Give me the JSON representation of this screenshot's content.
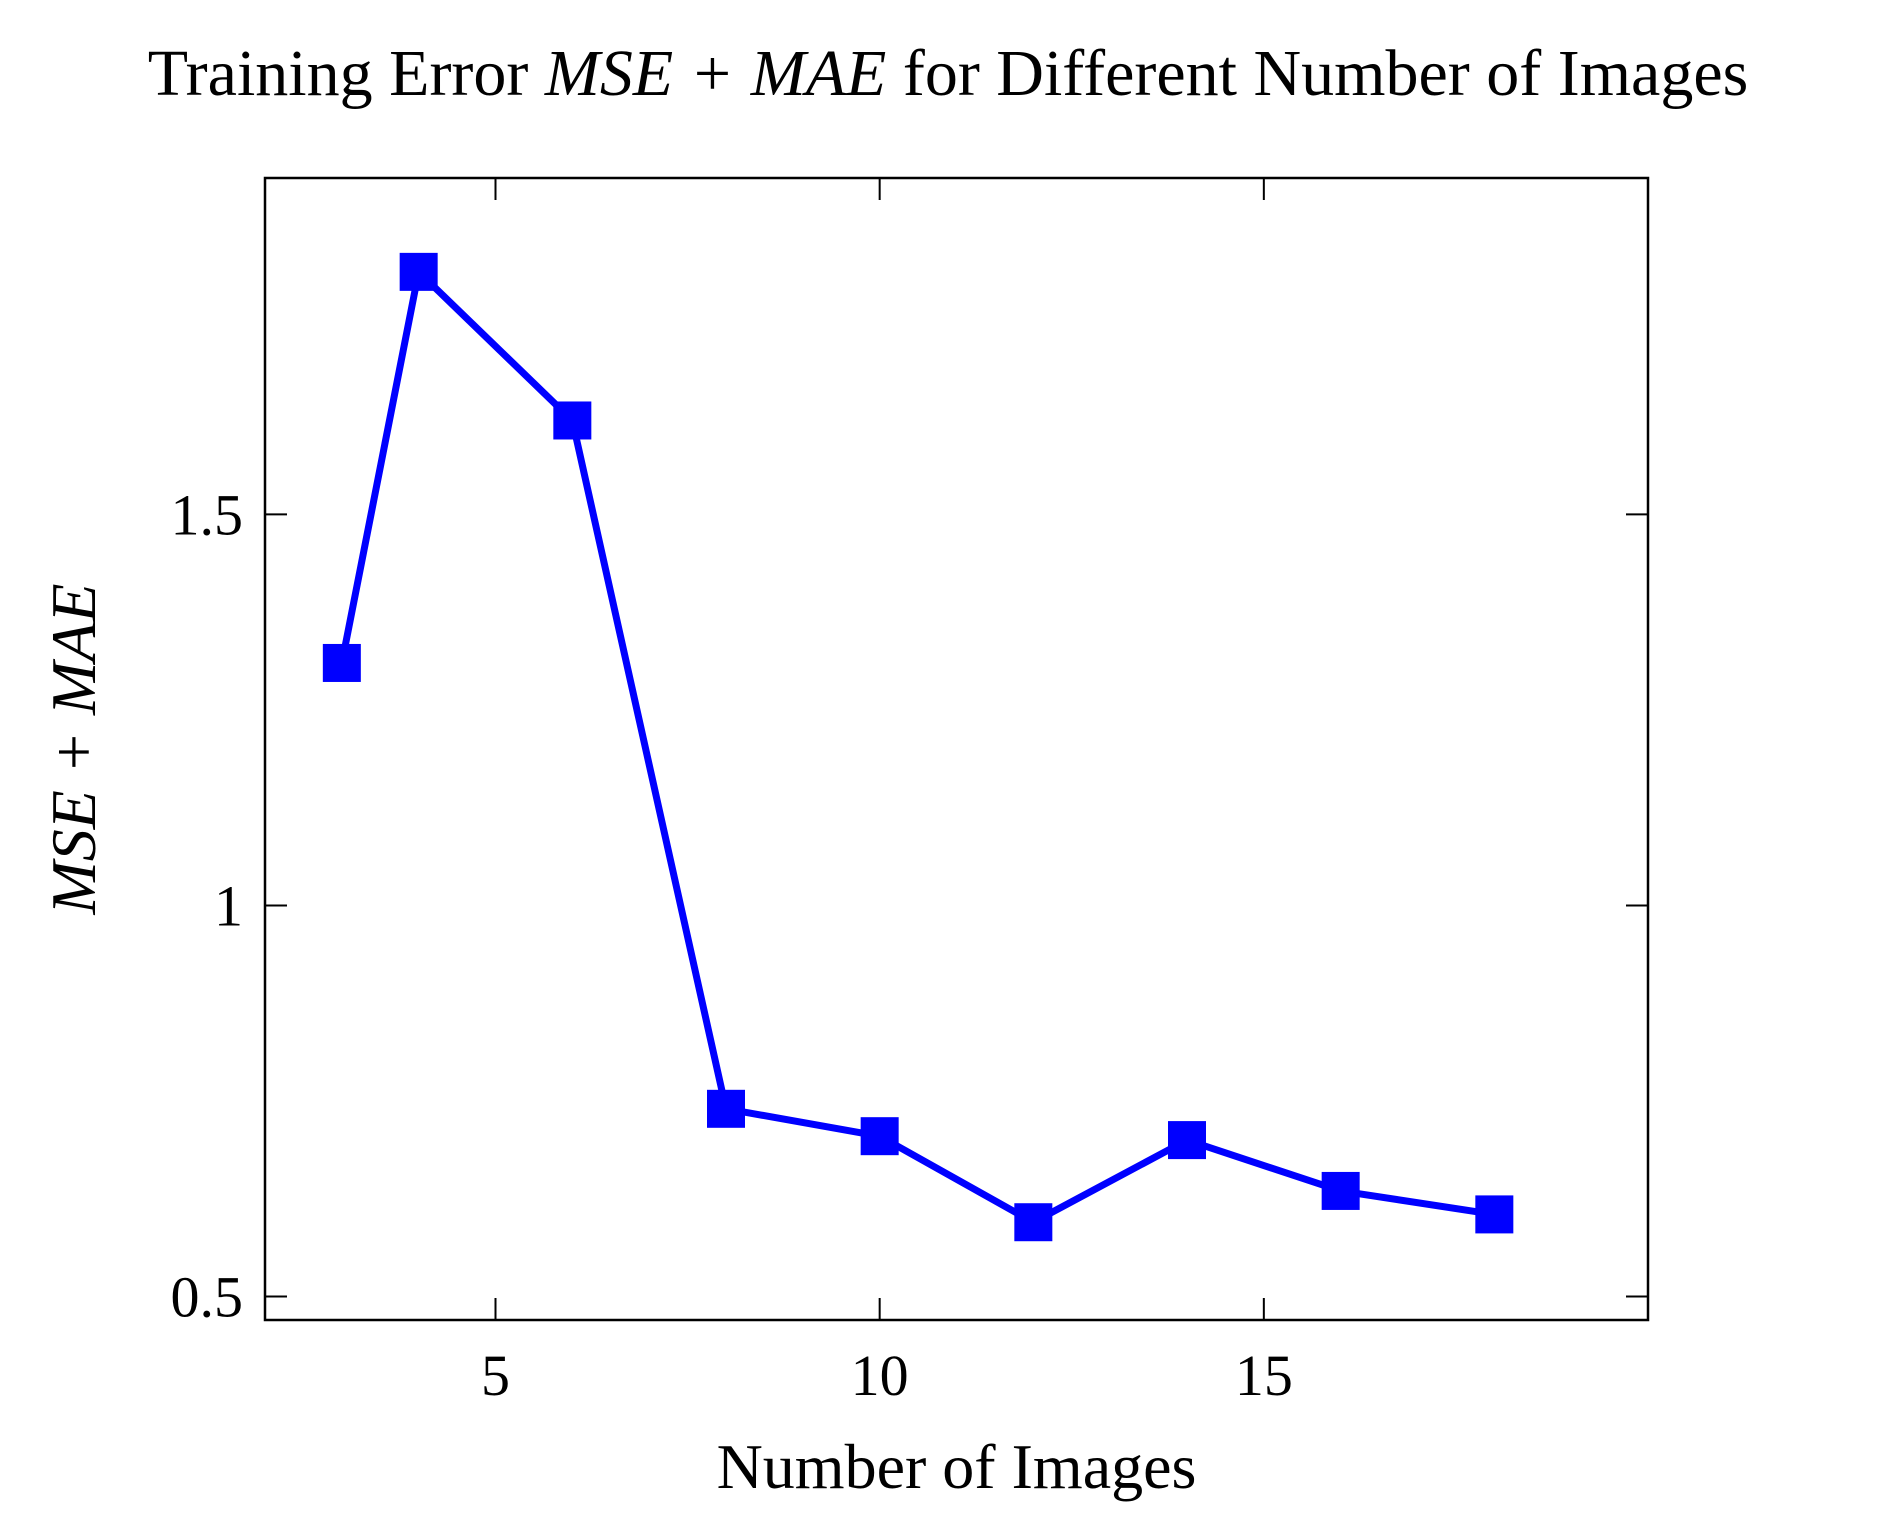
{
  "chart_data": {
    "type": "line",
    "title": {
      "prefix": "Training Error ",
      "math": "MSE + MAE",
      "suffix": " for Different Number of Images"
    },
    "xlabel": "Number of Images",
    "ylabel": "MSE + MAE",
    "xlim": [
      2,
      20
    ],
    "ylim": [
      0.47,
      1.93
    ],
    "xticks": [
      5,
      10,
      15
    ],
    "xtick_labels": [
      "5",
      "10",
      "15"
    ],
    "yticks": [
      0.5,
      1,
      1.5
    ],
    "ytick_labels": [
      "0.5",
      "1",
      "1.5"
    ],
    "grid": false,
    "legend": "none",
    "series": [
      {
        "color": "#0000ff",
        "marker": "square",
        "x": [
          3,
          4,
          6,
          8,
          10,
          12,
          14,
          16,
          18
        ],
        "y": [
          1.31,
          1.81,
          1.62,
          0.74,
          0.705,
          0.595,
          0.7,
          0.635,
          0.605
        ]
      }
    ]
  }
}
